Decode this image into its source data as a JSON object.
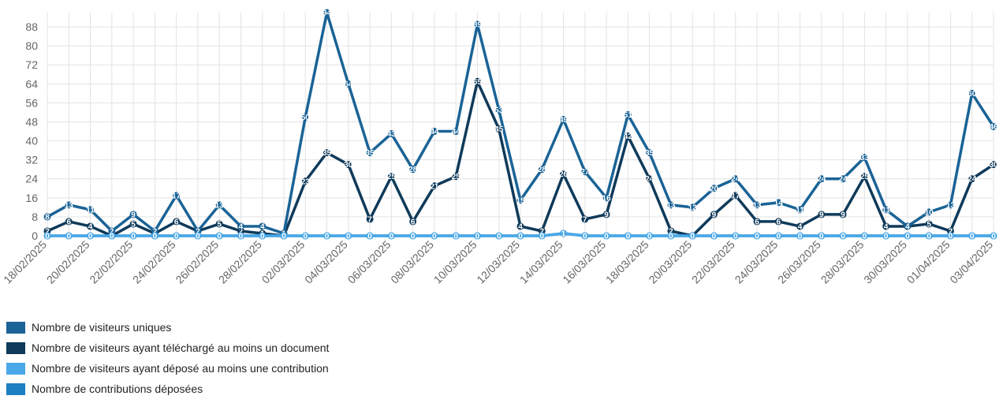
{
  "chart_data": {
    "type": "line",
    "x": [
      "18/02/2025",
      "19/02/2025",
      "20/02/2025",
      "21/02/2025",
      "22/02/2025",
      "23/02/2025",
      "24/02/2025",
      "25/02/2025",
      "26/02/2025",
      "27/02/2025",
      "28/02/2025",
      "01/03/2025",
      "02/03/2025",
      "03/03/2025",
      "04/03/2025",
      "05/03/2025",
      "06/03/2025",
      "07/03/2025",
      "08/03/2025",
      "09/03/2025",
      "10/03/2025",
      "11/03/2025",
      "12/03/2025",
      "13/03/2025",
      "14/03/2025",
      "15/03/2025",
      "16/03/2025",
      "17/03/2025",
      "18/03/2025",
      "19/03/2025",
      "20/03/2025",
      "21/03/2025",
      "22/03/2025",
      "23/03/2025",
      "24/03/2025",
      "25/03/2025",
      "26/03/2025",
      "27/03/2025",
      "28/03/2025",
      "29/03/2025",
      "30/03/2025",
      "31/03/2025",
      "01/04/2025",
      "02/04/2025",
      "03/04/2025"
    ],
    "xtick_labels": [
      "18/02/2025",
      "20/02/2025",
      "22/02/2025",
      "24/02/2025",
      "26/02/2025",
      "28/02/2025",
      "02/03/2025",
      "04/03/2025",
      "06/03/2025",
      "08/03/2025",
      "10/03/2025",
      "12/03/2025",
      "14/03/2025",
      "16/03/2025",
      "18/03/2025",
      "20/03/2025",
      "22/03/2025",
      "24/03/2025",
      "26/03/2025",
      "28/03/2025",
      "30/03/2025",
      "01/04/2025",
      "03/04/2025"
    ],
    "yticks": [
      0,
      8,
      16,
      24,
      32,
      40,
      48,
      56,
      64,
      72,
      80,
      88
    ],
    "ylim": [
      0,
      94
    ],
    "grid": true,
    "legend_position": "bottom-left",
    "series": [
      {
        "name": "Nombre de visiteurs uniques",
        "color": "#1a6396",
        "values": [
          8,
          13,
          11,
          2,
          9,
          2,
          17,
          2,
          13,
          4,
          4,
          1,
          50,
          94,
          64,
          35,
          43,
          28,
          44,
          44,
          89,
          53,
          15,
          28,
          49,
          27,
          16,
          51,
          35,
          13,
          12,
          20,
          24,
          13,
          14,
          11,
          24,
          24,
          33,
          11,
          4,
          10,
          13,
          60,
          46
        ]
      },
      {
        "name": "Nombre de visiteurs ayant téléchargé au moins un document",
        "color": "#0f3a5a",
        "values": [
          2,
          6,
          4,
          0,
          5,
          1,
          6,
          2,
          5,
          2,
          1,
          0,
          23,
          35,
          30,
          7,
          25,
          6,
          21,
          25,
          65,
          45,
          4,
          2,
          26,
          7,
          9,
          42,
          24,
          2,
          0,
          9,
          17,
          6,
          6,
          4,
          9,
          9,
          25,
          4,
          4,
          5,
          2,
          24,
          30
        ]
      },
      {
        "name": "Nombre de visiteurs ayant déposé au moins une contribution",
        "color": "#4aa8e8",
        "values": [
          0,
          0,
          0,
          0,
          0,
          0,
          0,
          0,
          0,
          0,
          0,
          0,
          0,
          0,
          0,
          0,
          0,
          0,
          0,
          0,
          0,
          0,
          0,
          0,
          1,
          0,
          0,
          0,
          0,
          0,
          0,
          0,
          0,
          0,
          0,
          0,
          0,
          0,
          0,
          0,
          0,
          0,
          0,
          0,
          0
        ]
      },
      {
        "name": "Nombre de contributions déposées",
        "color": "#1c7fc0",
        "values": [
          0,
          0,
          0,
          0,
          0,
          0,
          0,
          0,
          0,
          0,
          0,
          0,
          0,
          0,
          0,
          0,
          0,
          0,
          0,
          0,
          0,
          0,
          0,
          0,
          1,
          0,
          0,
          0,
          0,
          0,
          0,
          0,
          0,
          0,
          0,
          0,
          0,
          0,
          0,
          0,
          0,
          0,
          0,
          0,
          0
        ]
      }
    ]
  }
}
